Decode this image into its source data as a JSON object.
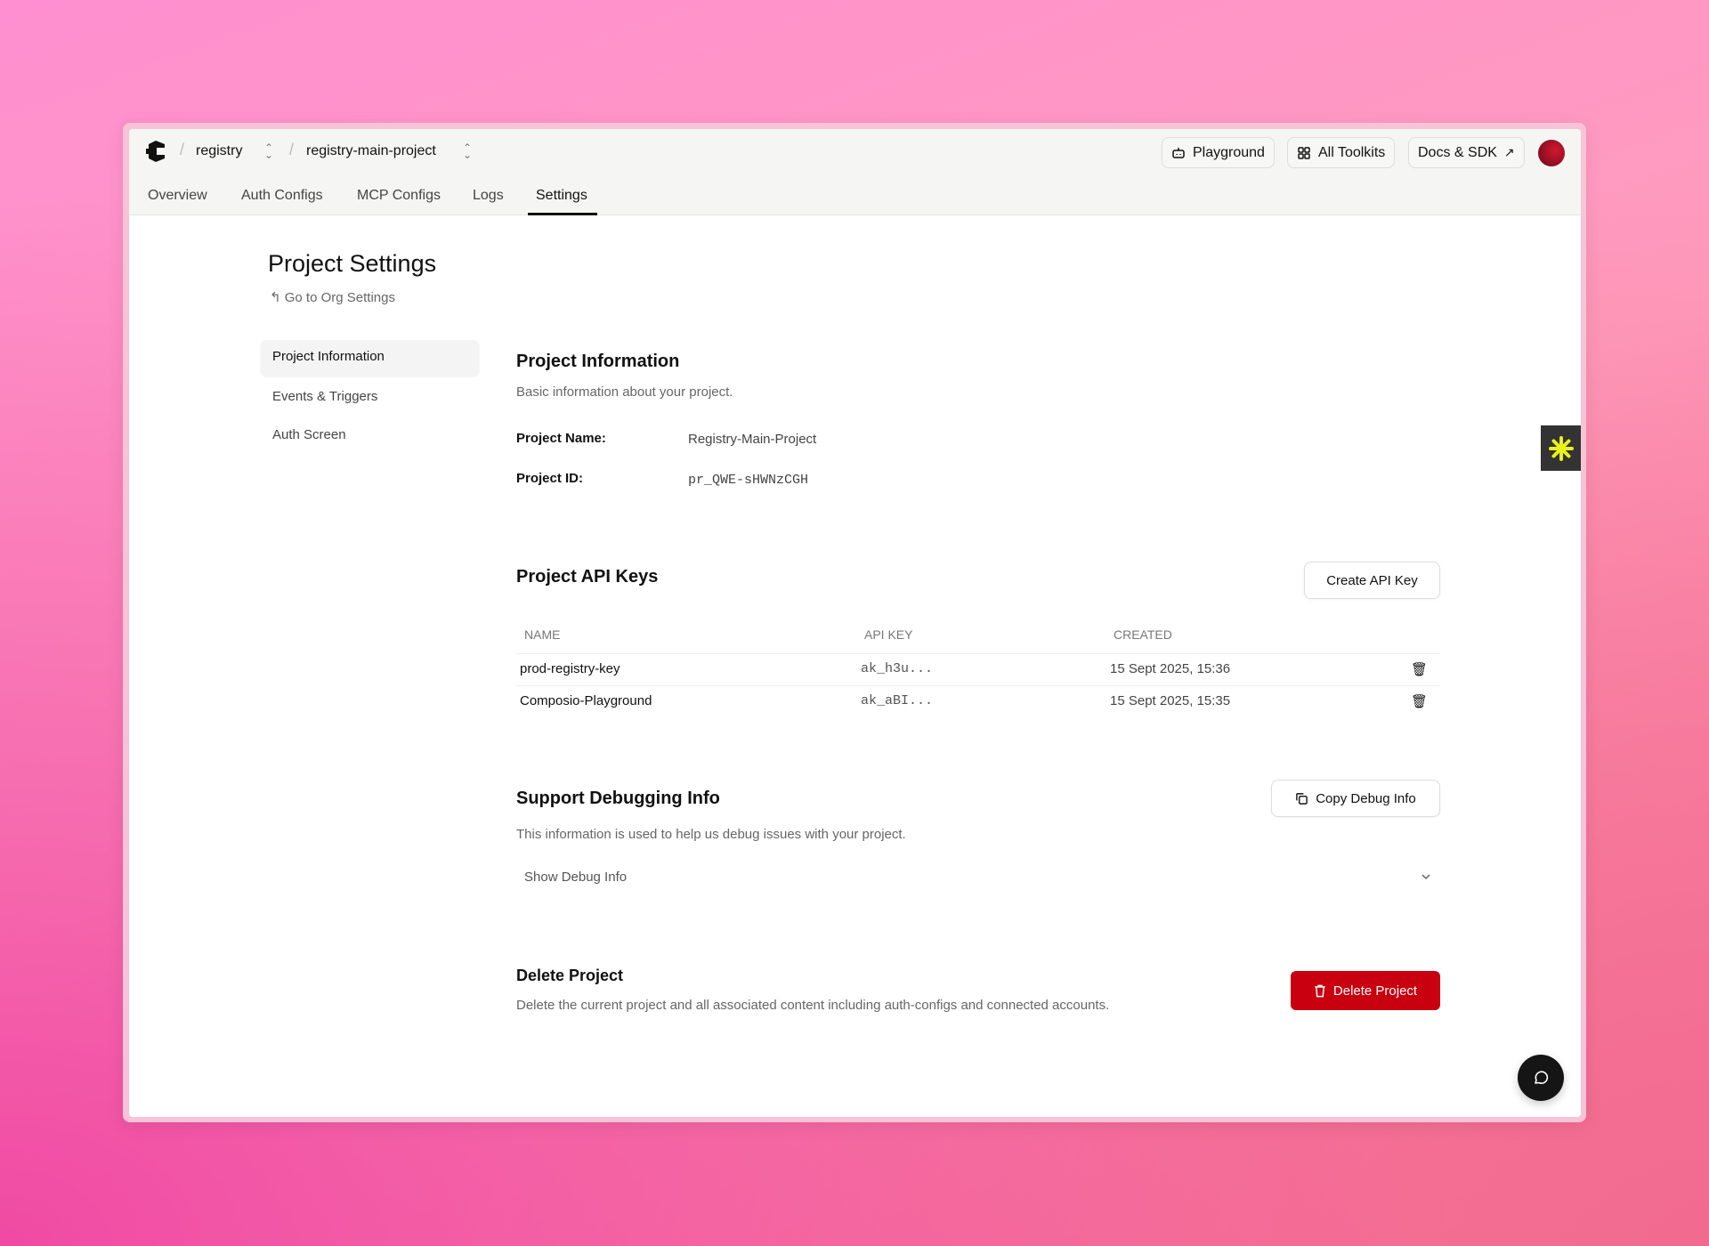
{
  "header": {
    "breadcrumb": [
      {
        "label": "registry"
      },
      {
        "label": "registry-main-project"
      }
    ],
    "tabs": [
      {
        "label": "Overview"
      },
      {
        "label": "Auth Configs"
      },
      {
        "label": "MCP Configs"
      },
      {
        "label": "Logs"
      },
      {
        "label": "Settings",
        "active": true
      }
    ],
    "buttons": {
      "playground": "Playground",
      "toolkits": "All Toolkits",
      "docs": "Docs & SDK"
    }
  },
  "page": {
    "title": "Project Settings",
    "back_link": "Go to Org Settings"
  },
  "sidebar": {
    "items": [
      {
        "label": "Project Information",
        "active": true
      },
      {
        "label": "Events & Triggers"
      },
      {
        "label": "Auth Screen"
      }
    ]
  },
  "project_info": {
    "heading": "Project Information",
    "description": "Basic information about your project.",
    "name_label": "Project Name:",
    "name_value": "Registry-Main-Project",
    "id_label": "Project ID:",
    "id_value": "pr_QWE-sHWNzCGH"
  },
  "api_keys": {
    "heading": "Project API Keys",
    "create_button": "Create API Key",
    "columns": [
      "NAME",
      "API KEY",
      "CREATED"
    ],
    "rows": [
      {
        "name": "prod-registry-key",
        "key": "ak_h3u...",
        "created": "15 Sept 2025, 15:36"
      },
      {
        "name": "Composio-Playground",
        "key": "ak_aBI...",
        "created": "15 Sept 2025, 15:35"
      }
    ]
  },
  "debug": {
    "heading": "Support Debugging Info",
    "description": "This information is used to help us debug issues with your project.",
    "copy_button": "Copy Debug Info",
    "toggle": "Show Debug Info"
  },
  "delete": {
    "heading": "Delete Project",
    "description": "Delete the current project and all associated content including auth-configs and connected accounts.",
    "button": "Delete Project"
  },
  "colors": {
    "danger": "#c8000f",
    "widget_accent": "#e8f020"
  }
}
